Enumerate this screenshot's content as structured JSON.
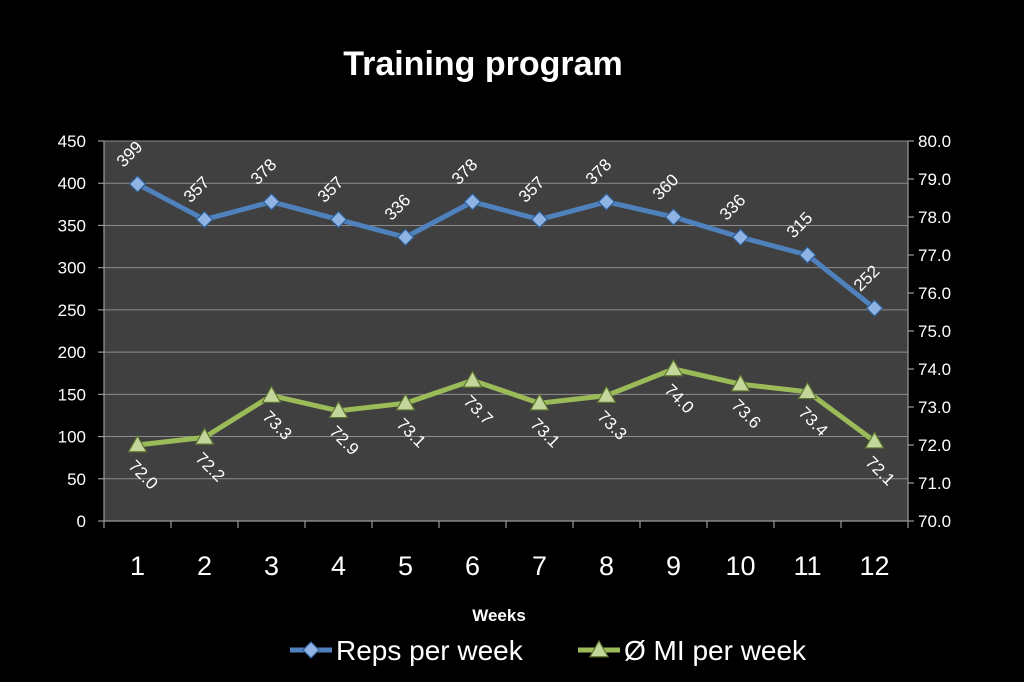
{
  "chart_data": {
    "type": "line",
    "title": "Training program",
    "xlabel": "Weeks",
    "ylabel_left": "",
    "ylabel_right": "",
    "categories": [
      "1",
      "2",
      "3",
      "4",
      "5",
      "6",
      "7",
      "8",
      "9",
      "10",
      "11",
      "12"
    ],
    "y_left": {
      "min": 0,
      "max": 450,
      "step": 50,
      "ticks": [
        "0",
        "50",
        "100",
        "150",
        "200",
        "250",
        "300",
        "350",
        "400",
        "450"
      ]
    },
    "y_right": {
      "min": 70.0,
      "max": 80.0,
      "step": 1.0,
      "ticks": [
        "70.0",
        "71.0",
        "72.0",
        "73.0",
        "74.0",
        "75.0",
        "76.0",
        "77.0",
        "78.0",
        "79.0",
        "80.0"
      ]
    },
    "series": [
      {
        "name": "Reps per week",
        "axis": "left",
        "marker": "diamond",
        "color": "#4f81bd",
        "values": [
          399,
          357,
          378,
          357,
          336,
          378,
          357,
          378,
          360,
          336,
          315,
          252
        ],
        "labels": [
          "399",
          "357",
          "378",
          "357",
          "336",
          "378",
          "357",
          "378",
          "360",
          "336",
          "315",
          "252"
        ]
      },
      {
        "name": "Ø MI per week",
        "axis": "right",
        "marker": "triangle",
        "color": "#9bbb59",
        "values": [
          72.0,
          72.2,
          73.3,
          72.9,
          73.1,
          73.7,
          73.1,
          73.3,
          74.0,
          73.6,
          73.4,
          72.1
        ],
        "labels": [
          "72.0",
          "72.2",
          "73.3",
          "72.9",
          "73.1",
          "73.7",
          "73.1",
          "73.3",
          "74.0",
          "73.6",
          "73.4",
          "72.1"
        ]
      }
    ],
    "grid": true,
    "plot_background": "#404040",
    "legend": "bottom"
  }
}
